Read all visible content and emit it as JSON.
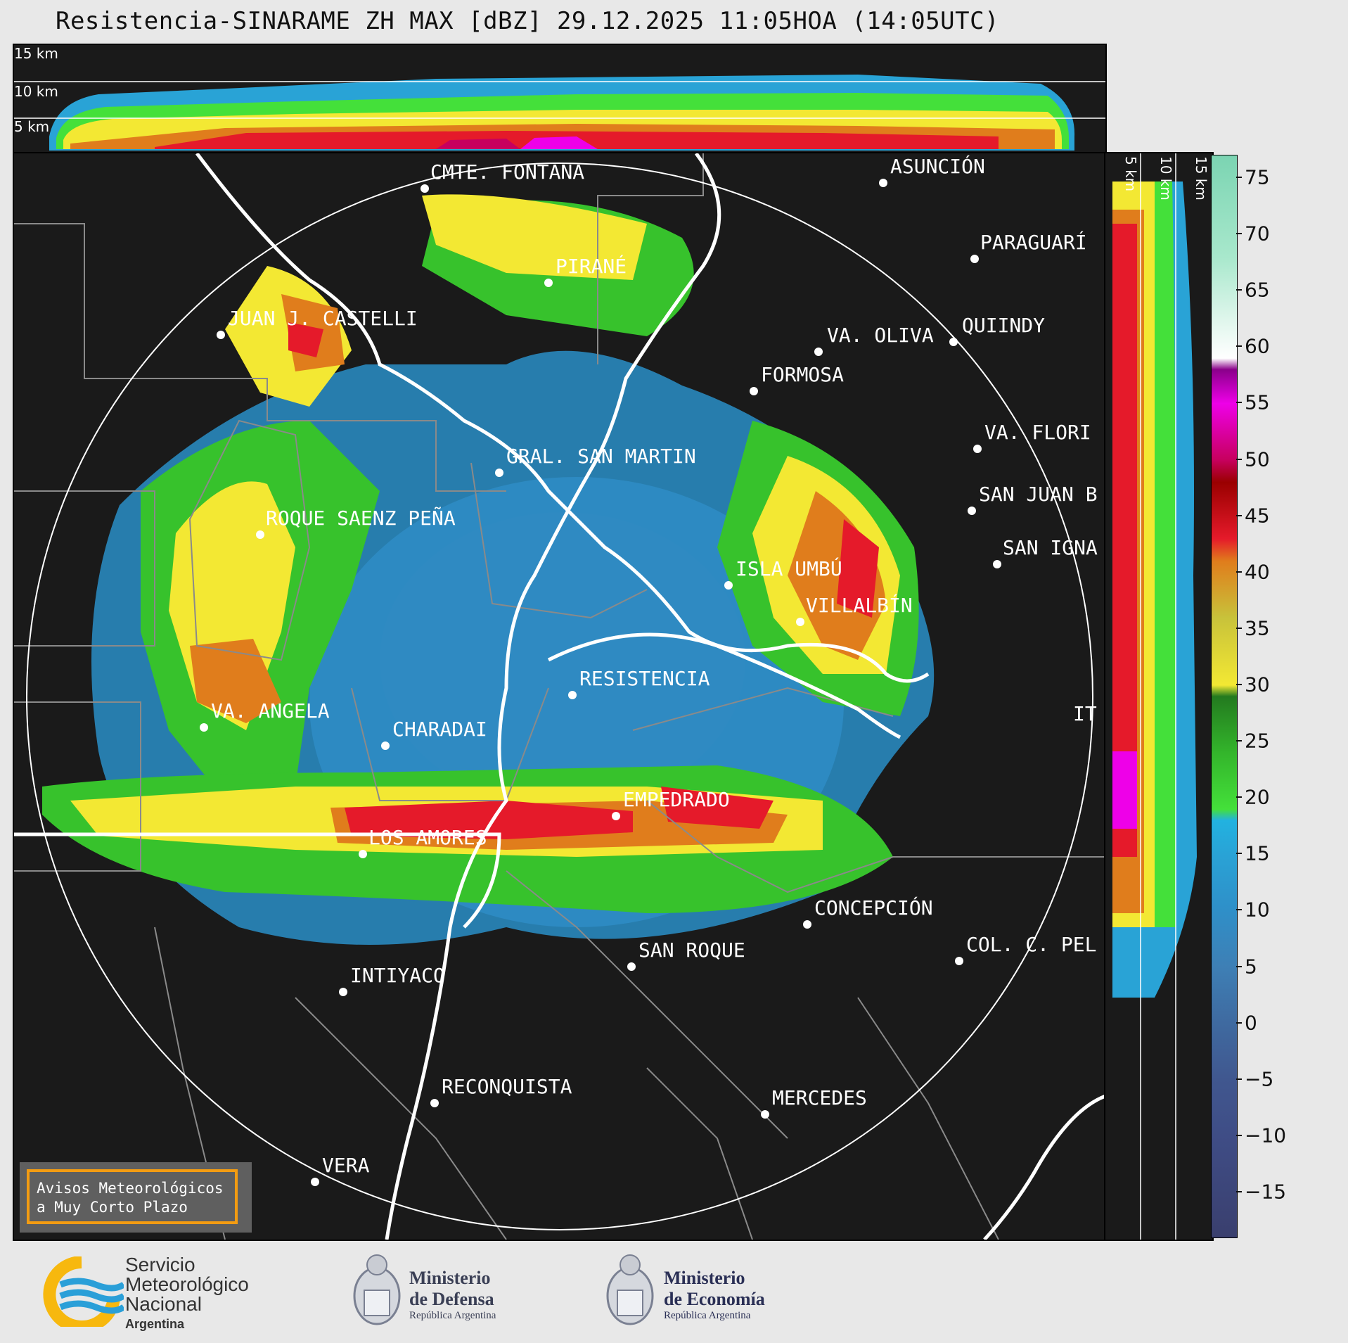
{
  "title": "Resistencia-SINARAME ZH MAX [dBZ] 29.12.2025 11:05HOA (14:05UTC)",
  "top_profile_heights": [
    "15 km",
    "10 km",
    "5 km"
  ],
  "side_profile_heights": [
    "5 km",
    "10 km",
    "15 km"
  ],
  "colorbar": {
    "unit": "dBZ",
    "ticks": [
      "75",
      "70",
      "65",
      "60",
      "55",
      "50",
      "45",
      "40",
      "35",
      "30",
      "25",
      "20",
      "15",
      "10",
      "5",
      "0",
      "−5",
      "−10",
      "−15"
    ],
    "tick_values": [
      75,
      70,
      65,
      60,
      55,
      50,
      45,
      40,
      35,
      30,
      25,
      20,
      15,
      10,
      5,
      0,
      -5,
      -10,
      -15
    ],
    "range": [
      -19,
      77
    ],
    "stops": [
      {
        "v": -19,
        "c": "#3a3f6e"
      },
      {
        "v": -10,
        "c": "#3f4d86"
      },
      {
        "v": -5,
        "c": "#40578f"
      },
      {
        "v": 0,
        "c": "#3f6aa0"
      },
      {
        "v": 5,
        "c": "#3e7fb5"
      },
      {
        "v": 10,
        "c": "#2f8fc8"
      },
      {
        "v": 15,
        "c": "#29a3d6"
      },
      {
        "v": 18,
        "c": "#22b2e0"
      },
      {
        "v": 19,
        "c": "#44e03a"
      },
      {
        "v": 24,
        "c": "#33b52b"
      },
      {
        "v": 29,
        "c": "#237a1f"
      },
      {
        "v": 30,
        "c": "#f3e833"
      },
      {
        "v": 36,
        "c": "#c8c23a"
      },
      {
        "v": 41,
        "c": "#e07d1c"
      },
      {
        "v": 43,
        "c": "#e51a2a"
      },
      {
        "v": 48,
        "c": "#9a0000"
      },
      {
        "v": 50,
        "c": "#c7005e"
      },
      {
        "v": 55,
        "c": "#ee00e8"
      },
      {
        "v": 58,
        "c": "#8a008a"
      },
      {
        "v": 59,
        "c": "#ffffff"
      },
      {
        "v": 62,
        "c": "#e3f7ee"
      },
      {
        "v": 68,
        "c": "#a8e8cc"
      },
      {
        "v": 77,
        "c": "#7bd4b2"
      }
    ]
  },
  "cities": [
    {
      "name": "CMTE. FONTANA"
    },
    {
      "name": "ASUNCIÓN"
    },
    {
      "name": "PARAGUARÍ"
    },
    {
      "name": "PIRANÉ"
    },
    {
      "name": "JUAN J. CASTELLI"
    },
    {
      "name": "VA. OLIVA"
    },
    {
      "name": "QUIINDY"
    },
    {
      "name": "FORMOSA"
    },
    {
      "name": "VA. FLORI"
    },
    {
      "name": "GRAL. SAN MARTIN"
    },
    {
      "name": "SAN JUAN B"
    },
    {
      "name": "ROQUE SAENZ PEÑA"
    },
    {
      "name": "SAN IGNA"
    },
    {
      "name": "ISLA UMBÚ"
    },
    {
      "name": "VILLALBÍN"
    },
    {
      "name": "RESISTENCIA"
    },
    {
      "name": "VA. ANGELA"
    },
    {
      "name": "CHARADAI"
    },
    {
      "name": "IT"
    },
    {
      "name": "EMPEDRADO"
    },
    {
      "name": "LOS AMORES"
    },
    {
      "name": "CONCEPCIÓN"
    },
    {
      "name": "SAN ROQUE"
    },
    {
      "name": "COL. C. PEL"
    },
    {
      "name": "INTIYACO"
    },
    {
      "name": "RECONQUISTA"
    },
    {
      "name": "MERCEDES"
    },
    {
      "name": "VERA"
    }
  ],
  "legend": {
    "line1": "Avisos Meteorológicos",
    "line2": "a Muy Corto Plazo"
  },
  "logos": {
    "smn": {
      "line1": "Servicio",
      "line2": "Meteorológico",
      "line3": "Nacional",
      "line4": "Argentina"
    },
    "defensa": {
      "line1": "Ministerio",
      "line2": "de Defensa",
      "line3": "República Argentina"
    },
    "economia": {
      "line1": "Ministerio",
      "line2": "de Economía",
      "line3": "República Argentina"
    }
  },
  "colors": {
    "background": "#1a1a1a",
    "accent": "#f39c12",
    "smn_blue": "#2a9fd8",
    "smn_yellow": "#f7b80e"
  }
}
